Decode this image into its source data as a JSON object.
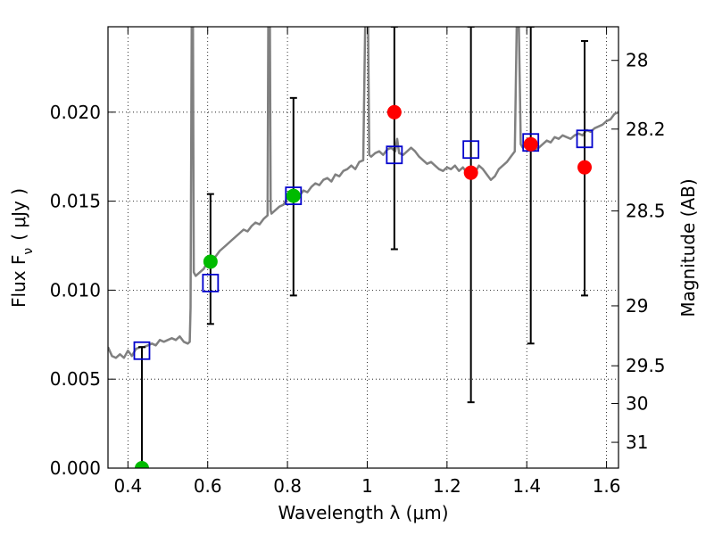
{
  "chart_data": {
    "type": "scatter",
    "xlabel": "Wavelength  λ (μm)",
    "ylabel": "Flux  F",
    "ylabel_sub": "ν",
    "ylabel_unit": "( μJy )",
    "y2label": "Magnitude (AB)",
    "xlim": [
      0.35,
      1.63
    ],
    "ylim": [
      0.0,
      0.0248
    ],
    "grid": true,
    "x_ticks": [
      {
        "value": 0.4,
        "label": "0.4"
      },
      {
        "value": 0.6,
        "label": "0.6"
      },
      {
        "value": 0.8,
        "label": "0.8"
      },
      {
        "value": 1.0,
        "label": "1"
      },
      {
        "value": 1.2,
        "label": "1.2"
      },
      {
        "value": 1.4,
        "label": "1.4"
      },
      {
        "value": 1.6,
        "label": "1.6"
      }
    ],
    "y_ticks": [
      {
        "value": 0.0,
        "label": "0.000"
      },
      {
        "value": 0.005,
        "label": "0.005"
      },
      {
        "value": 0.01,
        "label": "0.010"
      },
      {
        "value": 0.015,
        "label": "0.015"
      },
      {
        "value": 0.02,
        "label": "0.020"
      }
    ],
    "y2_ticks": [
      {
        "label": "28",
        "flux": 0.02291
      },
      {
        "label": "28.2",
        "flux": 0.01905
      },
      {
        "label": "28.5",
        "flux": 0.01445
      },
      {
        "label": "29",
        "flux": 0.00912
      },
      {
        "label": "29.5",
        "flux": 0.00575
      },
      {
        "label": "30",
        "flux": 0.00363
      },
      {
        "label": "31",
        "flux": 0.00145
      }
    ],
    "spectrum": {
      "color": "#808080",
      "points": [
        [
          0.35,
          0.0068
        ],
        [
          0.36,
          0.0063
        ],
        [
          0.37,
          0.0062
        ],
        [
          0.38,
          0.0064
        ],
        [
          0.39,
          0.0062
        ],
        [
          0.4,
          0.0066
        ],
        [
          0.41,
          0.0063
        ],
        [
          0.42,
          0.0067
        ],
        [
          0.43,
          0.0068
        ],
        [
          0.44,
          0.0068
        ],
        [
          0.45,
          0.0069
        ],
        [
          0.46,
          0.007
        ],
        [
          0.47,
          0.0069
        ],
        [
          0.48,
          0.0072
        ],
        [
          0.49,
          0.0071
        ],
        [
          0.5,
          0.0072
        ],
        [
          0.51,
          0.0073
        ],
        [
          0.52,
          0.0072
        ],
        [
          0.53,
          0.0074
        ],
        [
          0.54,
          0.0071
        ],
        [
          0.55,
          0.007
        ],
        [
          0.555,
          0.0071
        ],
        [
          0.557,
          0.009
        ],
        [
          0.56,
          0.025
        ],
        [
          0.563,
          0.025
        ],
        [
          0.565,
          0.011
        ],
        [
          0.57,
          0.0108
        ],
        [
          0.58,
          0.011
        ],
        [
          0.59,
          0.0112
        ],
        [
          0.6,
          0.0116
        ],
        [
          0.61,
          0.0118
        ],
        [
          0.62,
          0.0119
        ],
        [
          0.63,
          0.0122
        ],
        [
          0.64,
          0.0124
        ],
        [
          0.65,
          0.0126
        ],
        [
          0.66,
          0.0128
        ],
        [
          0.67,
          0.013
        ],
        [
          0.68,
          0.0132
        ],
        [
          0.69,
          0.0134
        ],
        [
          0.7,
          0.0133
        ],
        [
          0.71,
          0.0136
        ],
        [
          0.72,
          0.0138
        ],
        [
          0.73,
          0.0137
        ],
        [
          0.74,
          0.014
        ],
        [
          0.75,
          0.0142
        ],
        [
          0.752,
          0.025
        ],
        [
          0.756,
          0.025
        ],
        [
          0.758,
          0.0145
        ],
        [
          0.76,
          0.0143
        ],
        [
          0.77,
          0.0145
        ],
        [
          0.78,
          0.0147
        ],
        [
          0.79,
          0.0148
        ],
        [
          0.8,
          0.0152
        ],
        [
          0.81,
          0.0154
        ],
        [
          0.82,
          0.015
        ],
        [
          0.83,
          0.0153
        ],
        [
          0.84,
          0.0156
        ],
        [
          0.85,
          0.0155
        ],
        [
          0.86,
          0.0158
        ],
        [
          0.87,
          0.016
        ],
        [
          0.88,
          0.0159
        ],
        [
          0.89,
          0.0162
        ],
        [
          0.9,
          0.0163
        ],
        [
          0.91,
          0.0161
        ],
        [
          0.92,
          0.0165
        ],
        [
          0.93,
          0.0164
        ],
        [
          0.94,
          0.0167
        ],
        [
          0.95,
          0.0168
        ],
        [
          0.96,
          0.017
        ],
        [
          0.97,
          0.0168
        ],
        [
          0.98,
          0.0172
        ],
        [
          0.99,
          0.0173
        ],
        [
          0.995,
          0.025
        ],
        [
          1.002,
          0.025
        ],
        [
          1.005,
          0.0176
        ],
        [
          1.01,
          0.0175
        ],
        [
          1.02,
          0.0177
        ],
        [
          1.03,
          0.0178
        ],
        [
          1.04,
          0.0176
        ],
        [
          1.05,
          0.0179
        ],
        [
          1.06,
          0.018
        ],
        [
          1.07,
          0.0178
        ],
        [
          1.075,
          0.0185
        ],
        [
          1.08,
          0.0177
        ],
        [
          1.09,
          0.0176
        ],
        [
          1.1,
          0.0178
        ],
        [
          1.11,
          0.018
        ],
        [
          1.12,
          0.0178
        ],
        [
          1.13,
          0.0175
        ],
        [
          1.14,
          0.0173
        ],
        [
          1.15,
          0.0171
        ],
        [
          1.16,
          0.0172
        ],
        [
          1.17,
          0.017
        ],
        [
          1.18,
          0.0168
        ],
        [
          1.19,
          0.0167
        ],
        [
          1.2,
          0.0169
        ],
        [
          1.21,
          0.0168
        ],
        [
          1.22,
          0.017
        ],
        [
          1.23,
          0.0167
        ],
        [
          1.24,
          0.0169
        ],
        [
          1.25,
          0.0166
        ],
        [
          1.26,
          0.0168
        ],
        [
          1.27,
          0.0166
        ],
        [
          1.28,
          0.017
        ],
        [
          1.29,
          0.0168
        ],
        [
          1.3,
          0.0165
        ],
        [
          1.31,
          0.0162
        ],
        [
          1.32,
          0.0164
        ],
        [
          1.33,
          0.0168
        ],
        [
          1.34,
          0.017
        ],
        [
          1.35,
          0.0172
        ],
        [
          1.36,
          0.0175
        ],
        [
          1.37,
          0.0178
        ],
        [
          1.375,
          0.025
        ],
        [
          1.38,
          0.025
        ],
        [
          1.385,
          0.0182
        ],
        [
          1.39,
          0.018
        ],
        [
          1.4,
          0.0183
        ],
        [
          1.41,
          0.0181
        ],
        [
          1.42,
          0.0179
        ],
        [
          1.43,
          0.018
        ],
        [
          1.44,
          0.0182
        ],
        [
          1.45,
          0.0184
        ],
        [
          1.46,
          0.0183
        ],
        [
          1.47,
          0.0186
        ],
        [
          1.48,
          0.0185
        ],
        [
          1.49,
          0.0187
        ],
        [
          1.5,
          0.0186
        ],
        [
          1.51,
          0.0185
        ],
        [
          1.52,
          0.0187
        ],
        [
          1.53,
          0.0188
        ],
        [
          1.54,
          0.0187
        ],
        [
          1.55,
          0.019
        ],
        [
          1.56,
          0.0189
        ],
        [
          1.57,
          0.0191
        ],
        [
          1.58,
          0.0192
        ],
        [
          1.59,
          0.0193
        ],
        [
          1.6,
          0.0195
        ],
        [
          1.61,
          0.0196
        ],
        [
          1.62,
          0.0199
        ],
        [
          1.63,
          0.02
        ]
      ]
    },
    "series": [
      {
        "marker": "square",
        "color": "#0000cc",
        "points": [
          {
            "x": 0.435,
            "y": 0.0066
          },
          {
            "x": 0.607,
            "y": 0.0104
          },
          {
            "x": 0.815,
            "y": 0.0153
          },
          {
            "x": 1.068,
            "y": 0.0176
          },
          {
            "x": 1.26,
            "y": 0.0179
          },
          {
            "x": 1.41,
            "y": 0.0183
          },
          {
            "x": 1.545,
            "y": 0.0185
          }
        ]
      },
      {
        "marker": "circle",
        "color": "#00bb00",
        "points": [
          {
            "x": 0.435,
            "y": 0.0,
            "err_lo": 0.0,
            "err_hi": 0.0068
          },
          {
            "x": 0.607,
            "y": 0.0116,
            "err_lo": 0.0081,
            "err_hi": 0.0154
          },
          {
            "x": 0.815,
            "y": 0.0153,
            "err_lo": 0.0097,
            "err_hi": 0.0208
          }
        ]
      },
      {
        "marker": "circle",
        "color": "#ff0000",
        "points": [
          {
            "x": 1.068,
            "y": 0.02,
            "err_lo": 0.0123,
            "err_hi": 0.0248
          },
          {
            "x": 1.26,
            "y": 0.0166,
            "err_lo": 0.0037,
            "err_hi": 0.0248
          },
          {
            "x": 1.41,
            "y": 0.0182,
            "err_lo": 0.007,
            "err_hi": 0.0248
          },
          {
            "x": 1.545,
            "y": 0.0169,
            "err_lo": 0.0097,
            "err_hi": 0.024
          }
        ]
      }
    ]
  }
}
